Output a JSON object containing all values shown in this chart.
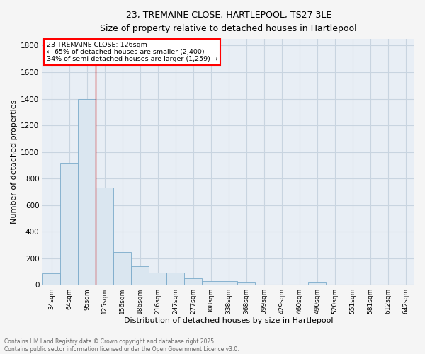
{
  "title_line1": "23, TREMAINE CLOSE, HARTLEPOOL, TS27 3LE",
  "title_line2": "Size of property relative to detached houses in Hartlepool",
  "xlabel": "Distribution of detached houses by size in Hartlepool",
  "ylabel": "Number of detached properties",
  "bar_color": "#dae6f0",
  "bar_edge_color": "#7aaaca",
  "background_color": "#e8eef5",
  "grid_color": "#c8d4e0",
  "fig_bg_color": "#f5f5f5",
  "categories": [
    "34sqm",
    "64sqm",
    "95sqm",
    "125sqm",
    "156sqm",
    "186sqm",
    "216sqm",
    "247sqm",
    "277sqm",
    "308sqm",
    "338sqm",
    "368sqm",
    "399sqm",
    "429sqm",
    "460sqm",
    "490sqm",
    "520sqm",
    "551sqm",
    "581sqm",
    "612sqm",
    "642sqm"
  ],
  "values": [
    88,
    920,
    1400,
    730,
    245,
    140,
    90,
    90,
    50,
    25,
    25,
    15,
    0,
    0,
    0,
    15,
    0,
    0,
    0,
    0,
    0
  ],
  "ylim": [
    0,
    1850
  ],
  "yticks": [
    0,
    200,
    400,
    600,
    800,
    1000,
    1200,
    1400,
    1600,
    1800
  ],
  "red_line_x": 2.5,
  "annotation_title": "23 TREMAINE CLOSE: 126sqm",
  "annotation_line1": "← 65% of detached houses are smaller (2,400)",
  "annotation_line2": "34% of semi-detached houses are larger (1,259) →",
  "footer_line1": "Contains HM Land Registry data © Crown copyright and database right 2025.",
  "footer_line2": "Contains public sector information licensed under the Open Government Licence v3.0."
}
